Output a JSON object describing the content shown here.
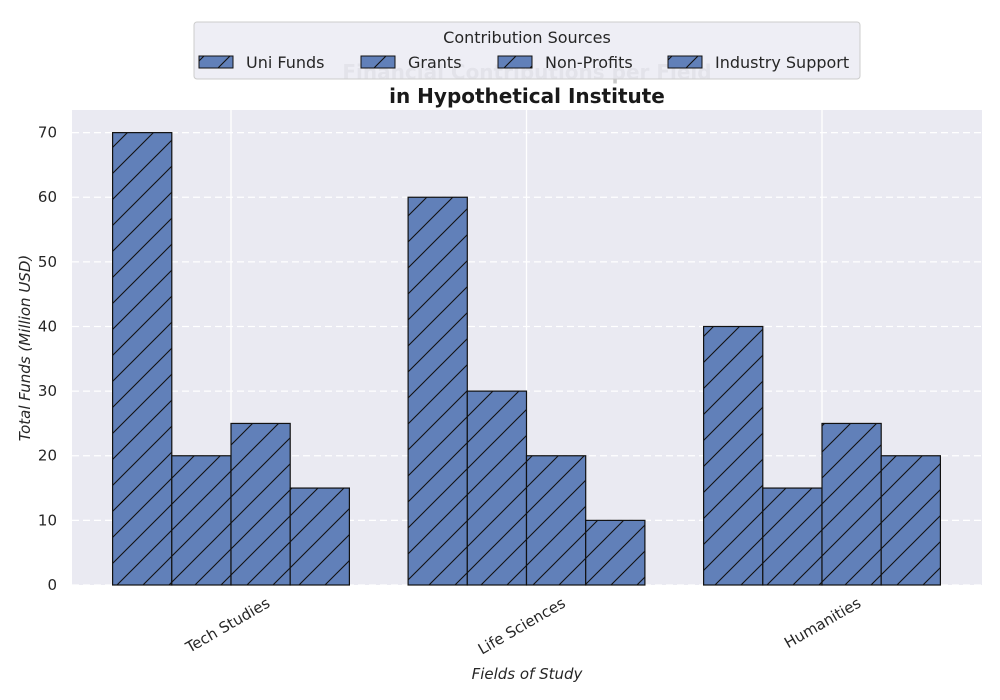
{
  "chart_data": {
    "type": "bar",
    "title_line_1": "Financial Contributions per Field",
    "title_line_2": "in Hypothetical Institute",
    "xlabel": "Fields of Study",
    "ylabel": "Total Funds (Million USD)",
    "categories": [
      "Tech Studies",
      "Life Sciences",
      "Humanities"
    ],
    "series": [
      {
        "name": "Uni Funds",
        "values": [
          70,
          60,
          40
        ]
      },
      {
        "name": "Grants",
        "values": [
          20,
          30,
          15
        ]
      },
      {
        "name": "Non-Profits",
        "values": [
          25,
          20,
          25
        ]
      },
      {
        "name": "Industry Support",
        "values": [
          15,
          10,
          20
        ]
      }
    ],
    "yticks": [
      0,
      10,
      20,
      30,
      40,
      50,
      60,
      70
    ],
    "ylim": [
      0,
      73.5
    ],
    "legend_title": "Contribution Sources",
    "legend_position": "top-center",
    "grid": true,
    "bar_color": "#6180b9",
    "background_color": "#eaeaf2"
  }
}
